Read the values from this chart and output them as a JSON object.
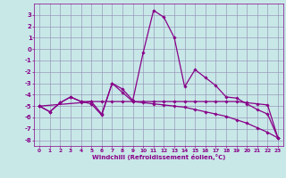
{
  "xlabel": "Windchill (Refroidissement éolien,°C)",
  "xlim": [
    -0.5,
    23.5
  ],
  "ylim": [
    -8.5,
    4.0
  ],
  "yticks": [
    3,
    2,
    1,
    0,
    -1,
    -2,
    -3,
    -4,
    -5,
    -6,
    -7,
    -8
  ],
  "xticks": [
    0,
    1,
    2,
    3,
    4,
    5,
    6,
    7,
    8,
    9,
    10,
    11,
    12,
    13,
    14,
    15,
    16,
    17,
    18,
    19,
    20,
    21,
    22,
    23
  ],
  "background_color": "#c8e8e8",
  "grid_color": "#9999bb",
  "line_color": "#880088",
  "series1": [
    [
      0,
      -5.0
    ],
    [
      1,
      -5.5
    ],
    [
      2,
      -4.7
    ],
    [
      3,
      -4.2
    ],
    [
      4,
      -4.6
    ],
    [
      5,
      -4.6
    ],
    [
      6,
      -5.7
    ],
    [
      7,
      -3.0
    ],
    [
      8,
      -3.5
    ],
    [
      9,
      -4.5
    ],
    [
      10,
      -0.3
    ],
    [
      11,
      3.4
    ],
    [
      12,
      2.8
    ],
    [
      13,
      1.0
    ],
    [
      14,
      -3.3
    ],
    [
      15,
      -1.8
    ],
    [
      16,
      -2.5
    ],
    [
      17,
      -3.2
    ],
    [
      18,
      -4.2
    ],
    [
      19,
      -4.3
    ],
    [
      20,
      -4.8
    ],
    [
      21,
      -5.3
    ],
    [
      22,
      -5.7
    ],
    [
      23,
      -7.8
    ]
  ],
  "series2": [
    [
      0,
      -5.0
    ],
    [
      4,
      -4.7
    ],
    [
      5,
      -4.6
    ],
    [
      6,
      -4.6
    ],
    [
      7,
      -4.6
    ],
    [
      8,
      -4.6
    ],
    [
      9,
      -4.6
    ],
    [
      10,
      -4.6
    ],
    [
      11,
      -4.6
    ],
    [
      12,
      -4.6
    ],
    [
      13,
      -4.6
    ],
    [
      14,
      -4.6
    ],
    [
      15,
      -4.6
    ],
    [
      16,
      -4.6
    ],
    [
      17,
      -4.6
    ],
    [
      18,
      -4.6
    ],
    [
      19,
      -4.6
    ],
    [
      20,
      -4.7
    ],
    [
      21,
      -4.8
    ],
    [
      22,
      -4.9
    ],
    [
      23,
      -7.8
    ]
  ],
  "series3": [
    [
      0,
      -5.0
    ],
    [
      1,
      -5.5
    ],
    [
      2,
      -4.7
    ],
    [
      3,
      -4.2
    ],
    [
      4,
      -4.6
    ],
    [
      5,
      -4.8
    ],
    [
      6,
      -5.8
    ],
    [
      7,
      -3.0
    ],
    [
      8,
      -3.8
    ],
    [
      9,
      -4.6
    ],
    [
      10,
      -4.7
    ],
    [
      11,
      -4.8
    ],
    [
      12,
      -4.9
    ],
    [
      13,
      -5.0
    ],
    [
      14,
      -5.1
    ],
    [
      15,
      -5.3
    ],
    [
      16,
      -5.5
    ],
    [
      17,
      -5.7
    ],
    [
      18,
      -5.9
    ],
    [
      19,
      -6.2
    ],
    [
      20,
      -6.5
    ],
    [
      21,
      -6.9
    ],
    [
      22,
      -7.3
    ],
    [
      23,
      -7.8
    ]
  ]
}
